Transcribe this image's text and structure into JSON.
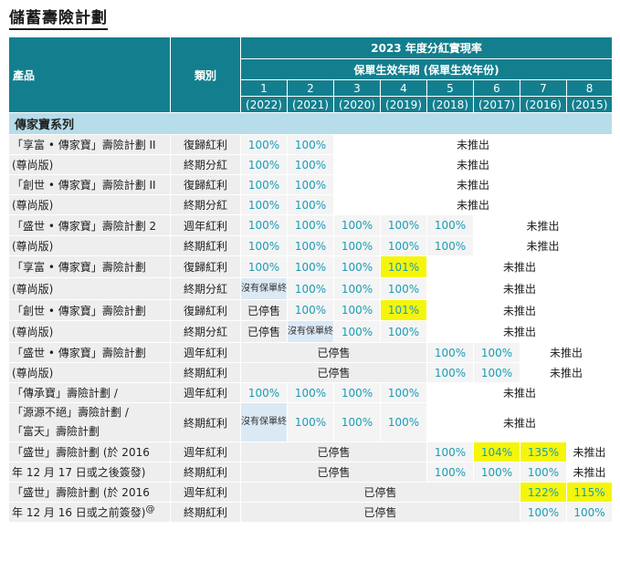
{
  "title": "儲蓄壽險計劃",
  "header": {
    "product": "產品",
    "category": "類別",
    "dividend_title": "2023 年度分紅實現率",
    "period_title": "保單生效年期 (保單生效年份)",
    "periods": [
      "1",
      "2",
      "3",
      "4",
      "5",
      "6",
      "7",
      "8"
    ],
    "years": [
      "(2022)",
      "(2021)",
      "(2020)",
      "(2019)",
      "(2018)",
      "(2017)",
      "(2016)",
      "(2015)"
    ]
  },
  "section": "傳家寶系列",
  "rows": [
    {
      "product": "「享富 • 傳家寶」壽險計劃 II",
      "category": "復歸紅利",
      "cells": [
        [
          "100%",
          "v"
        ],
        [
          "100%",
          "v"
        ],
        [
          "未推出",
          "txt",
          6
        ]
      ]
    },
    {
      "product": "(尊尚版)",
      "category": "終期分紅",
      "cells": [
        [
          "100%",
          "v"
        ],
        [
          "100%",
          "v"
        ],
        [
          "未推出",
          "txt",
          6
        ]
      ]
    },
    {
      "product": "「創世 • 傳家寶」壽險計劃 II",
      "category": "復歸紅利",
      "cells": [
        [
          "100%",
          "v"
        ],
        [
          "100%",
          "v"
        ],
        [
          "未推出",
          "txt",
          6
        ]
      ]
    },
    {
      "product": "(尊尚版)",
      "category": "終期分紅",
      "cells": [
        [
          "100%",
          "v"
        ],
        [
          "100%",
          "v"
        ],
        [
          "未推出",
          "txt",
          6
        ]
      ]
    },
    {
      "product": "「盛世 • 傳家寶」壽險計劃 2",
      "category": "週年紅利",
      "cells": [
        [
          "100%",
          "v"
        ],
        [
          "100%",
          "v"
        ],
        [
          "100%",
          "v"
        ],
        [
          "100%",
          "v"
        ],
        [
          "100%",
          "v"
        ],
        [
          "未推出",
          "txt",
          3
        ]
      ]
    },
    {
      "product": "(尊尚版)",
      "category": "終期紅利",
      "cells": [
        [
          "100%",
          "v"
        ],
        [
          "100%",
          "v"
        ],
        [
          "100%",
          "v"
        ],
        [
          "100%",
          "v"
        ],
        [
          "100%",
          "v"
        ],
        [
          "未推出",
          "txt",
          3
        ]
      ]
    },
    {
      "product": "「享富 • 傳家寶」壽險計劃",
      "category": "復歸紅利",
      "cells": [
        [
          "100%",
          "v"
        ],
        [
          "100%",
          "v"
        ],
        [
          "100%",
          "v"
        ],
        [
          "101%",
          "y"
        ],
        [
          "未推出",
          "txt",
          4
        ]
      ]
    },
    {
      "product": "(尊尚版)",
      "category": "終期分紅",
      "cells": [
        [
          "沒有保單終結",
          "b"
        ],
        [
          "100%",
          "v"
        ],
        [
          "100%",
          "v"
        ],
        [
          "100%",
          "v"
        ],
        [
          "未推出",
          "txt",
          4
        ]
      ]
    },
    {
      "product": "「創世 • 傳家寶」壽險計劃",
      "category": "復歸紅利",
      "cells": [
        [
          "已停售",
          "g"
        ],
        [
          "100%",
          "v"
        ],
        [
          "100%",
          "v"
        ],
        [
          "101%",
          "y"
        ],
        [
          "未推出",
          "txt",
          4
        ]
      ]
    },
    {
      "product": "(尊尚版)",
      "category": "終期分紅",
      "cells": [
        [
          "已停售",
          "g"
        ],
        [
          "沒有保單終結",
          "b"
        ],
        [
          "100%",
          "v"
        ],
        [
          "100%",
          "v"
        ],
        [
          "未推出",
          "txt",
          4
        ]
      ]
    },
    {
      "product": "「盛世 • 傳家寶」壽險計劃",
      "category": "週年紅利",
      "cells": [
        [
          "已停售",
          "g",
          4
        ],
        [
          "100%",
          "v"
        ],
        [
          "100%",
          "v"
        ],
        [
          "未推出",
          "txt",
          2
        ]
      ]
    },
    {
      "product": "(尊尚版)",
      "category": "終期紅利",
      "cells": [
        [
          "已停售",
          "g",
          4
        ],
        [
          "100%",
          "v"
        ],
        [
          "100%",
          "v"
        ],
        [
          "未推出",
          "txt",
          2
        ]
      ]
    },
    {
      "product": "「傳承寶」壽險計劃 /",
      "category": "週年紅利",
      "cells": [
        [
          "100%",
          "v"
        ],
        [
          "100%",
          "v"
        ],
        [
          "100%",
          "v"
        ],
        [
          "100%",
          "v"
        ],
        [
          "未推出",
          "txt",
          4
        ]
      ]
    },
    {
      "product": "「源源不絕」壽險計劃 /",
      "product2": "「富天」壽險計劃",
      "category": "終期紅利",
      "cells": [
        [
          "沒有保單終結",
          "b"
        ],
        [
          "100%",
          "v"
        ],
        [
          "100%",
          "v"
        ],
        [
          "100%",
          "v"
        ],
        [
          "未推出",
          "txt",
          4
        ]
      ]
    },
    {
      "product": "「盛世」壽險計劃 (於 2016",
      "category": "週年紅利",
      "cells": [
        [
          "已停售",
          "g",
          4
        ],
        [
          "100%",
          "v"
        ],
        [
          "104%",
          "y"
        ],
        [
          "135%",
          "y"
        ],
        [
          "未推出",
          "txt"
        ]
      ]
    },
    {
      "product": "年 12 月 17 日或之後簽發)",
      "category": "終期紅利",
      "cells": [
        [
          "已停售",
          "g",
          4
        ],
        [
          "100%",
          "v"
        ],
        [
          "100%",
          "v"
        ],
        [
          "100%",
          "v"
        ],
        [
          "未推出",
          "txt"
        ]
      ]
    },
    {
      "product": "「盛世」壽險計劃 (於 2016",
      "category": "週年紅利",
      "cells": [
        [
          "已停售",
          "g",
          6
        ],
        [
          "122%",
          "y"
        ],
        [
          "115%",
          "y"
        ]
      ]
    },
    {
      "product": "年 12 月 16 日或之前簽發)",
      "sup": "@",
      "category": "終期紅利",
      "cells": [
        [
          "已停售",
          "g",
          6
        ],
        [
          "100%",
          "v"
        ],
        [
          "100%",
          "v"
        ]
      ]
    }
  ]
}
